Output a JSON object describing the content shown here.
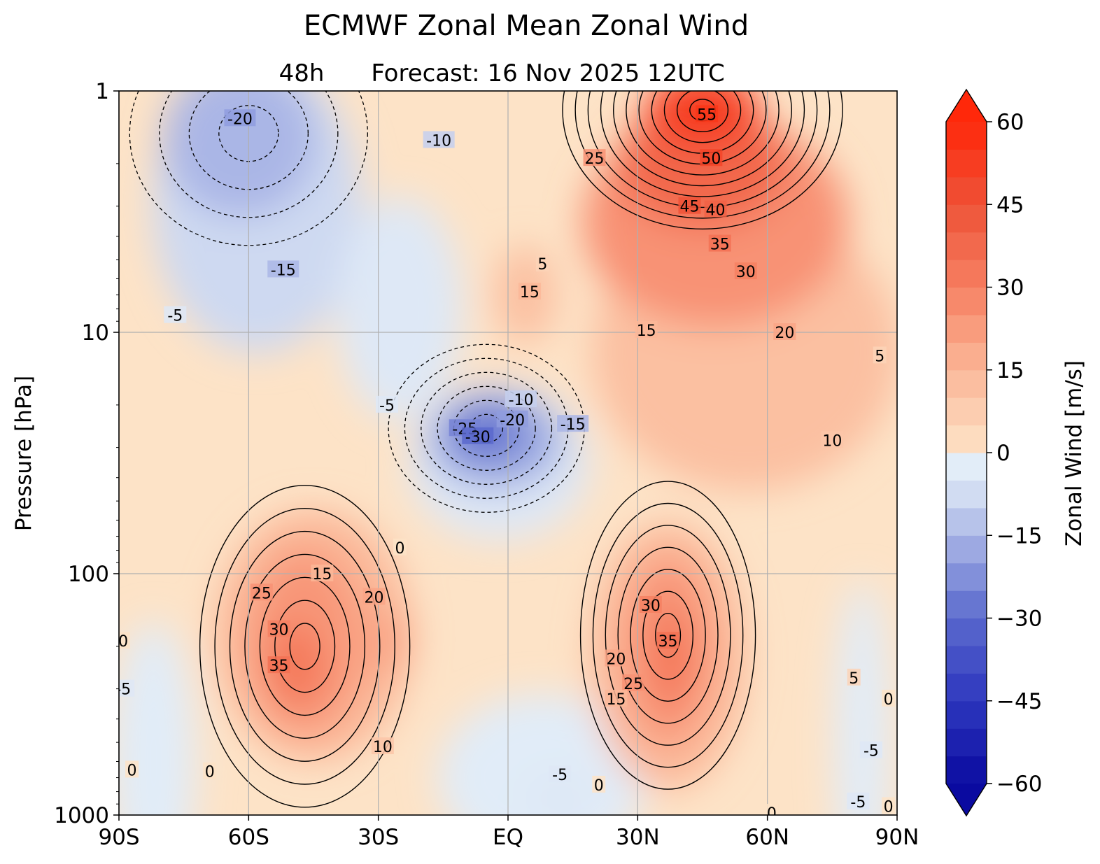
{
  "chart_data": {
    "type": "heatmap",
    "title": "ECMWF Zonal Mean Zonal Wind",
    "subtitle_left": "48h",
    "subtitle": "Forecast:  16 Nov 2025  12UTC",
    "xlabel": "",
    "ylabel": "Pressure [hPa]",
    "colorbar_label": "Zonal Wind [m/s]",
    "x_ticks": [
      {
        "value": -90,
        "label": "90S"
      },
      {
        "value": -60,
        "label": "60S"
      },
      {
        "value": -30,
        "label": "30S"
      },
      {
        "value": 0,
        "label": "EQ"
      },
      {
        "value": 30,
        "label": "30N"
      },
      {
        "value": 60,
        "label": "60N"
      },
      {
        "value": 90,
        "label": "90N"
      }
    ],
    "y_ticks": [
      {
        "value": 1,
        "label": "1"
      },
      {
        "value": 10,
        "label": "10"
      },
      {
        "value": 100,
        "label": "100"
      },
      {
        "value": 1000,
        "label": "1000"
      }
    ],
    "xlim": [
      -90,
      90
    ],
    "ylim": [
      1000,
      1
    ],
    "y_scale": "log",
    "colorbar_ticks": [
      {
        "value": 60,
        "label": "60"
      },
      {
        "value": 45,
        "label": "45"
      },
      {
        "value": 30,
        "label": "30"
      },
      {
        "value": 15,
        "label": "15"
      },
      {
        "value": 0,
        "label": "0"
      },
      {
        "value": -15,
        "label": "−15"
      },
      {
        "value": -30,
        "label": "−30"
      },
      {
        "value": -45,
        "label": "−45"
      },
      {
        "value": -60,
        "label": "−60"
      }
    ],
    "colorbar_range": [
      -60,
      60
    ],
    "colorbar_step": 5,
    "colorbar_extend": "both",
    "grid": true,
    "features": [
      {
        "name": "SH subtropical jet",
        "lat": -47,
        "pressure": 200,
        "max": 35
      },
      {
        "name": "NH subtropical jet",
        "lat": 37,
        "pressure": 180,
        "max": 35
      },
      {
        "name": "NH stratospheric polar jet",
        "lat": 45,
        "pressure": 1.2,
        "max": 55
      },
      {
        "name": "Equatorial easterlies",
        "lat": -5,
        "pressure": 25,
        "min": -30
      },
      {
        "name": "SH stratospheric easterlies",
        "lat": -60,
        "pressure": 1.5,
        "min": -20
      }
    ],
    "contour_labels": [
      {
        "text": "-20",
        "lat": -62,
        "p": 1.3
      },
      {
        "text": "-10",
        "lat": -16,
        "p": 1.6
      },
      {
        "text": "-15",
        "lat": -52,
        "p": 5.5
      },
      {
        "text": "-5",
        "lat": -77,
        "p": 8.5
      },
      {
        "text": "25",
        "lat": 20,
        "p": 1.9
      },
      {
        "text": "55",
        "lat": 46,
        "p": 1.25
      },
      {
        "text": "50",
        "lat": 47,
        "p": 1.9
      },
      {
        "text": "45",
        "lat": 42,
        "p": 3.0
      },
      {
        "text": "40",
        "lat": 48,
        "p": 3.1
      },
      {
        "text": "35",
        "lat": 49,
        "p": 4.3
      },
      {
        "text": "30",
        "lat": 55,
        "p": 5.6
      },
      {
        "text": "5",
        "lat": 8,
        "p": 5.2
      },
      {
        "text": "15",
        "lat": 5,
        "p": 6.8
      },
      {
        "text": "15",
        "lat": 32,
        "p": 9.8
      },
      {
        "text": "20",
        "lat": 64,
        "p": 10.0
      },
      {
        "text": "5",
        "lat": 86,
        "p": 12.5
      },
      {
        "text": "10",
        "lat": 75,
        "p": 28
      },
      {
        "text": "-5",
        "lat": -28,
        "p": 20
      },
      {
        "text": "-10",
        "lat": 3,
        "p": 19
      },
      {
        "text": "-20",
        "lat": 1,
        "p": 23
      },
      {
        "text": "-25",
        "lat": -10,
        "p": 25
      },
      {
        "text": "-30",
        "lat": -7,
        "p": 27
      },
      {
        "text": "-15",
        "lat": 15,
        "p": 24
      },
      {
        "text": "0",
        "lat": -25,
        "p": 78
      },
      {
        "text": "15",
        "lat": -43,
        "p": 100
      },
      {
        "text": "20",
        "lat": -31,
        "p": 125
      },
      {
        "text": "25",
        "lat": -57,
        "p": 120
      },
      {
        "text": "30",
        "lat": -53,
        "p": 170
      },
      {
        "text": "35",
        "lat": -53,
        "p": 240
      },
      {
        "text": "30",
        "lat": 33,
        "p": 135
      },
      {
        "text": "35",
        "lat": 37,
        "p": 190
      },
      {
        "text": "20",
        "lat": 25,
        "p": 225
      },
      {
        "text": "25",
        "lat": 29,
        "p": 285
      },
      {
        "text": "15",
        "lat": 25,
        "p": 330
      },
      {
        "text": "10",
        "lat": -29,
        "p": 520
      },
      {
        "text": "0",
        "lat": -89,
        "p": 190
      },
      {
        "text": "-5",
        "lat": -89,
        "p": 300
      },
      {
        "text": "0",
        "lat": -87,
        "p": 650
      },
      {
        "text": "0",
        "lat": -69,
        "p": 660
      },
      {
        "text": "5",
        "lat": 80,
        "p": 270
      },
      {
        "text": "0",
        "lat": 88,
        "p": 330
      },
      {
        "text": "-5",
        "lat": 84,
        "p": 540
      },
      {
        "text": "-5",
        "lat": 12,
        "p": 680
      },
      {
        "text": "0",
        "lat": 21,
        "p": 750
      },
      {
        "text": "-5",
        "lat": 81,
        "p": 880
      },
      {
        "text": "0",
        "lat": 88,
        "p": 920
      },
      {
        "text": "0",
        "lat": 61,
        "p": 980
      }
    ]
  }
}
